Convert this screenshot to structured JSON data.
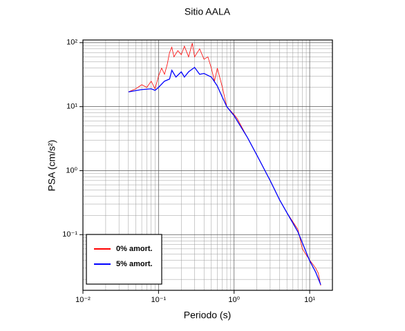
{
  "chart_data": {
    "type": "line",
    "title": "Sitio AALA",
    "x_label": "Periodo (s)",
    "y_label": "PSA (cm/s²)",
    "log_x": true,
    "log_y": true,
    "grid": true,
    "legend_position": "lower left",
    "xlim": [
      0.01,
      20
    ],
    "ylim": [
      0.0135,
      110
    ],
    "xticks": [
      {
        "value": 0.01,
        "label": "10⁻²"
      },
      {
        "value": 0.1,
        "label": "10⁻¹"
      },
      {
        "value": 1,
        "label": "10⁰"
      },
      {
        "value": 10,
        "label": "10¹"
      }
    ],
    "yticks": [
      {
        "value": 0.1,
        "label": "10⁻¹"
      },
      {
        "value": 1,
        "label": "10⁰"
      },
      {
        "value": 10,
        "label": "10¹"
      },
      {
        "value": 100,
        "label": "10²"
      }
    ],
    "xminorticks": [
      0.02,
      0.03,
      0.04,
      0.05,
      0.06,
      0.07,
      0.08,
      0.09,
      0.2,
      0.3,
      0.4,
      0.5,
      0.6,
      0.7,
      0.8,
      0.9,
      2,
      3,
      4,
      5,
      6,
      7,
      8,
      9
    ],
    "yminorticks": [
      0.02,
      0.03,
      0.04,
      0.05,
      0.06,
      0.07,
      0.08,
      0.09,
      0.2,
      0.3,
      0.4,
      0.5,
      0.6,
      0.7,
      0.8,
      0.9,
      2,
      3,
      4,
      5,
      6,
      7,
      8,
      9,
      20,
      30,
      40,
      50,
      60,
      70,
      80,
      90
    ],
    "series": [
      {
        "name": "0% amort.",
        "color": "#ff0000",
        "x": [
          0.04,
          0.05,
          0.06,
          0.07,
          0.08,
          0.09,
          0.1,
          0.11,
          0.12,
          0.13,
          0.14,
          0.15,
          0.16,
          0.18,
          0.2,
          0.22,
          0.25,
          0.28,
          0.3,
          0.35,
          0.4,
          0.45,
          0.5,
          0.55,
          0.6,
          0.7,
          0.8,
          1.0,
          1.1,
          1.5,
          2,
          3,
          4,
          5,
          7,
          8,
          10,
          12,
          13,
          14
        ],
        "values": [
          17,
          19,
          22,
          20,
          25,
          19,
          30,
          40,
          32,
          45,
          70,
          85,
          60,
          75,
          65,
          88,
          60,
          98,
          60,
          80,
          55,
          60,
          40,
          25,
          40,
          20,
          10,
          7.5,
          6.5,
          3.3,
          1.75,
          0.7,
          0.35,
          0.22,
          0.12,
          0.06,
          0.04,
          0.03,
          0.025,
          0.016
        ]
      },
      {
        "name": "5% amort.",
        "color": "#0000ff",
        "x": [
          0.04,
          0.06,
          0.08,
          0.09,
          0.1,
          0.12,
          0.14,
          0.15,
          0.17,
          0.2,
          0.22,
          0.25,
          0.3,
          0.35,
          0.4,
          0.5,
          0.6,
          0.7,
          0.8,
          1.0,
          1.5,
          2,
          3,
          4,
          5,
          7,
          10,
          12,
          14
        ],
        "values": [
          17,
          18.5,
          19,
          18,
          20,
          25,
          27,
          37,
          29,
          35,
          29,
          35,
          41,
          32,
          33,
          29,
          21,
          14,
          10,
          7.2,
          3.3,
          1.75,
          0.7,
          0.35,
          0.22,
          0.11,
          0.039,
          0.026,
          0.0165
        ]
      }
    ]
  }
}
